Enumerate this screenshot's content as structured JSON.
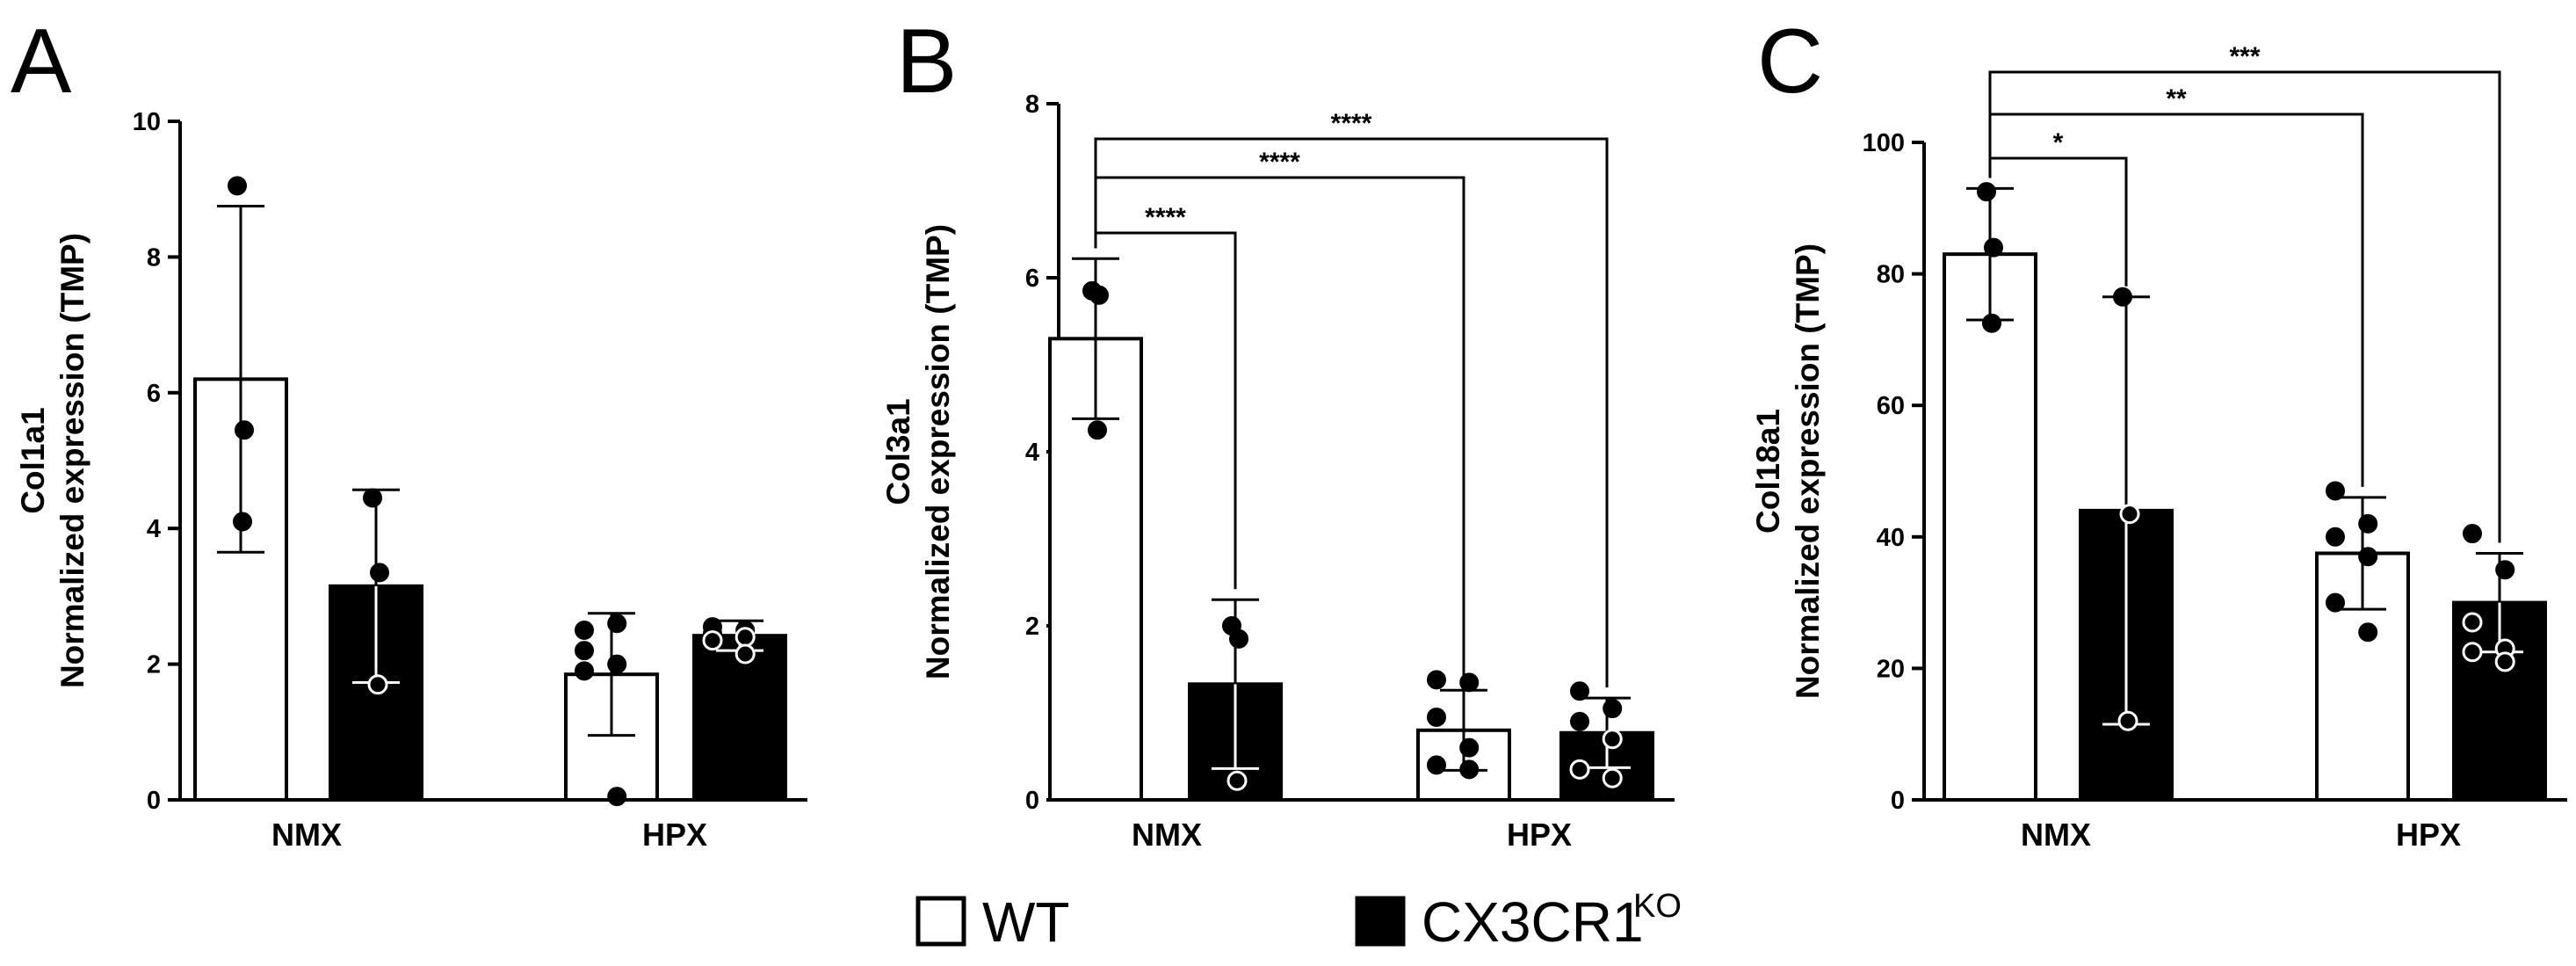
{
  "legend": {
    "wt_label": "WT",
    "ko_label": "CX3CR1",
    "ko_superscript": "KO",
    "wt_fill": "#ffffff",
    "ko_fill": "#000000"
  },
  "chart_data": [
    {
      "type": "bar",
      "panel": "A",
      "categories": [
        "NMX",
        "HPX"
      ],
      "ylabel_gene": "Col1a1",
      "ylabel_measure": "Normalized expression  (TMP)",
      "ylim": [
        0,
        10
      ],
      "yticks": [
        0,
        2,
        4,
        6,
        8,
        10
      ],
      "series": [
        {
          "name": "WT",
          "values": [
            6.2,
            1.85
          ],
          "sd": [
            2.55,
            0.9
          ],
          "points": [
            [
              9.05,
              5.45,
              4.1
            ],
            [
              2.5,
              2.6,
              2.2,
              2.0,
              1.9,
              0.05
            ]
          ]
        },
        {
          "name": "CX3CR1KO",
          "values": [
            3.15,
            2.42
          ],
          "sd": [
            1.42,
            0.22
          ],
          "points": [
            [
              4.45,
              3.35,
              1.7
            ],
            [
              2.55,
              2.5,
              2.45,
              2.4,
              2.35,
              2.15
            ]
          ]
        }
      ],
      "significance": []
    },
    {
      "type": "bar",
      "panel": "B",
      "categories": [
        "NMX",
        "HPX"
      ],
      "ylabel_gene": "Col3a1",
      "ylabel_measure": "Normalized expression  (TMP)",
      "ylim": [
        0,
        8
      ],
      "yticks": [
        0,
        2,
        4,
        6,
        8
      ],
      "series": [
        {
          "name": "WT",
          "values": [
            5.3,
            0.8
          ],
          "sd": [
            0.92,
            0.46
          ],
          "points": [
            [
              5.85,
              5.8,
              4.25
            ],
            [
              1.38,
              1.35,
              0.95,
              0.6,
              0.4,
              0.35
            ]
          ]
        },
        {
          "name": "CX3CR1KO",
          "values": [
            1.33,
            0.77
          ],
          "sd": [
            0.97,
            0.4
          ],
          "points": [
            [
              2.0,
              1.85,
              0.22
            ],
            [
              1.25,
              1.05,
              0.9,
              0.7,
              0.35,
              0.25
            ]
          ]
        }
      ],
      "significance": [
        {
          "label": "****",
          "from": [
            0,
            0
          ],
          "to": [
            0,
            1
          ]
        },
        {
          "label": "****",
          "from": [
            0,
            0
          ],
          "to": [
            1,
            0
          ]
        },
        {
          "label": "****",
          "from": [
            0,
            0
          ],
          "to": [
            1,
            1
          ]
        }
      ]
    },
    {
      "type": "bar",
      "panel": "C",
      "categories": [
        "NMX",
        "HPX"
      ],
      "ylabel_gene": "Col18a1",
      "ylabel_measure": "Normalized expression  (TMP)",
      "ylim": [
        0,
        100
      ],
      "yticks": [
        0,
        20,
        40,
        60,
        80,
        100
      ],
      "series": [
        {
          "name": "WT",
          "values": [
            83,
            37.5
          ],
          "sd": [
            10,
            8.5
          ],
          "points": [
            [
              92.5,
              84,
              72.5
            ],
            [
              47,
              42,
              40,
              37,
              30,
              25.5
            ]
          ]
        },
        {
          "name": "CX3CR1KO",
          "values": [
            44,
            30
          ],
          "sd": [
            32.5,
            7.5
          ],
          "points": [
            [
              76.5,
              43.5,
              12
            ],
            [
              40.5,
              35,
              27,
              23,
              22.5,
              21
            ]
          ]
        }
      ],
      "significance": [
        {
          "label": "*",
          "from": [
            0,
            0
          ],
          "to": [
            0,
            1
          ]
        },
        {
          "label": "**",
          "from": [
            0,
            0
          ],
          "to": [
            1,
            0
          ]
        },
        {
          "label": "***",
          "from": [
            0,
            0
          ],
          "to": [
            1,
            1
          ]
        }
      ]
    }
  ]
}
